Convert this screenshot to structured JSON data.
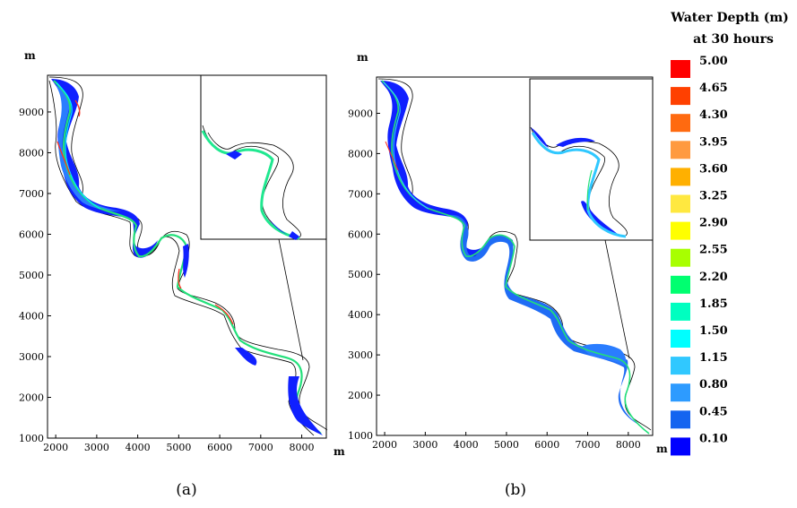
{
  "legend": {
    "title_line1": "Water Depth (m)",
    "title_line2": "at 30 hours",
    "items": [
      {
        "label": "5.00",
        "color": "#ff0000"
      },
      {
        "label": "4.65",
        "color": "#ff4000"
      },
      {
        "label": "4.30",
        "color": "#ff6a10"
      },
      {
        "label": "3.95",
        "color": "#ff9a40"
      },
      {
        "label": "3.60",
        "color": "#ffb000"
      },
      {
        "label": "3.25",
        "color": "#ffe840"
      },
      {
        "label": "2.90",
        "color": "#ffff00"
      },
      {
        "label": "2.55",
        "color": "#a8ff00"
      },
      {
        "label": "2.20",
        "color": "#00ff70"
      },
      {
        "label": "1.85",
        "color": "#00ffc0"
      },
      {
        "label": "1.50",
        "color": "#00ffff"
      },
      {
        "label": "1.15",
        "color": "#30c8ff"
      },
      {
        "label": "0.80",
        "color": "#2d9bff"
      },
      {
        "label": "0.45",
        "color": "#1464f0"
      },
      {
        "label": "0.10",
        "color": "#0000ff"
      }
    ]
  },
  "chart_data": [
    {
      "type": "heatmap",
      "caption": "(a)",
      "x_unit": "m",
      "y_unit": "m",
      "xlim": [
        1800,
        8600
      ],
      "ylim": [
        1000,
        9900
      ],
      "xticks": [
        "2000",
        "3000",
        "4000",
        "5000",
        "6000",
        "7000",
        "8000"
      ],
      "yticks": [
        "1000",
        "2000",
        "3000",
        "4000",
        "5000",
        "6000",
        "7000",
        "8000",
        "9000"
      ],
      "inset": true
    },
    {
      "type": "heatmap",
      "caption": "(b)",
      "x_unit": "m",
      "y_unit": "m",
      "xlim": [
        1800,
        8600
      ],
      "ylim": [
        1000,
        9900
      ],
      "xticks": [
        "2000",
        "3000",
        "4000",
        "5000",
        "6000",
        "7000",
        "8000"
      ],
      "yticks": [
        "1000",
        "2000",
        "3000",
        "4000",
        "5000",
        "6000",
        "7000",
        "8000",
        "9000"
      ],
      "inset": true
    }
  ]
}
